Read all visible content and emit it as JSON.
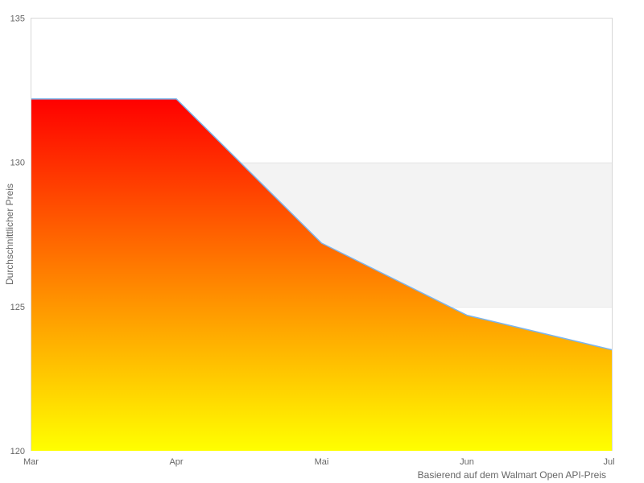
{
  "chart_data": {
    "type": "area",
    "categories": [
      "Mar",
      "Apr",
      "Mai",
      "Jun",
      "Jul"
    ],
    "values": [
      132.2,
      132.2,
      127.2,
      124.7,
      123.5
    ],
    "title": "",
    "xlabel": "",
    "ylabel": "Durchschnittlicher Preis",
    "caption": "Basierend auf dem Walmart Open API-Preis",
    "ylim": [
      120,
      135
    ],
    "yticks": [
      120,
      125,
      130,
      135
    ],
    "plot_band": {
      "from": 125,
      "to": 130,
      "color": "#f3f3f3"
    },
    "legend": "off",
    "grid": "band-edges-only",
    "colors": {
      "line": "#7cb5ec",
      "area_gradient_top": "#ff0000",
      "area_gradient_bottom": "#ffff00",
      "gridline": "#e6e6e6",
      "plot_border": "#d8d8d8",
      "text": "#666666",
      "background": "#ffffff"
    }
  }
}
